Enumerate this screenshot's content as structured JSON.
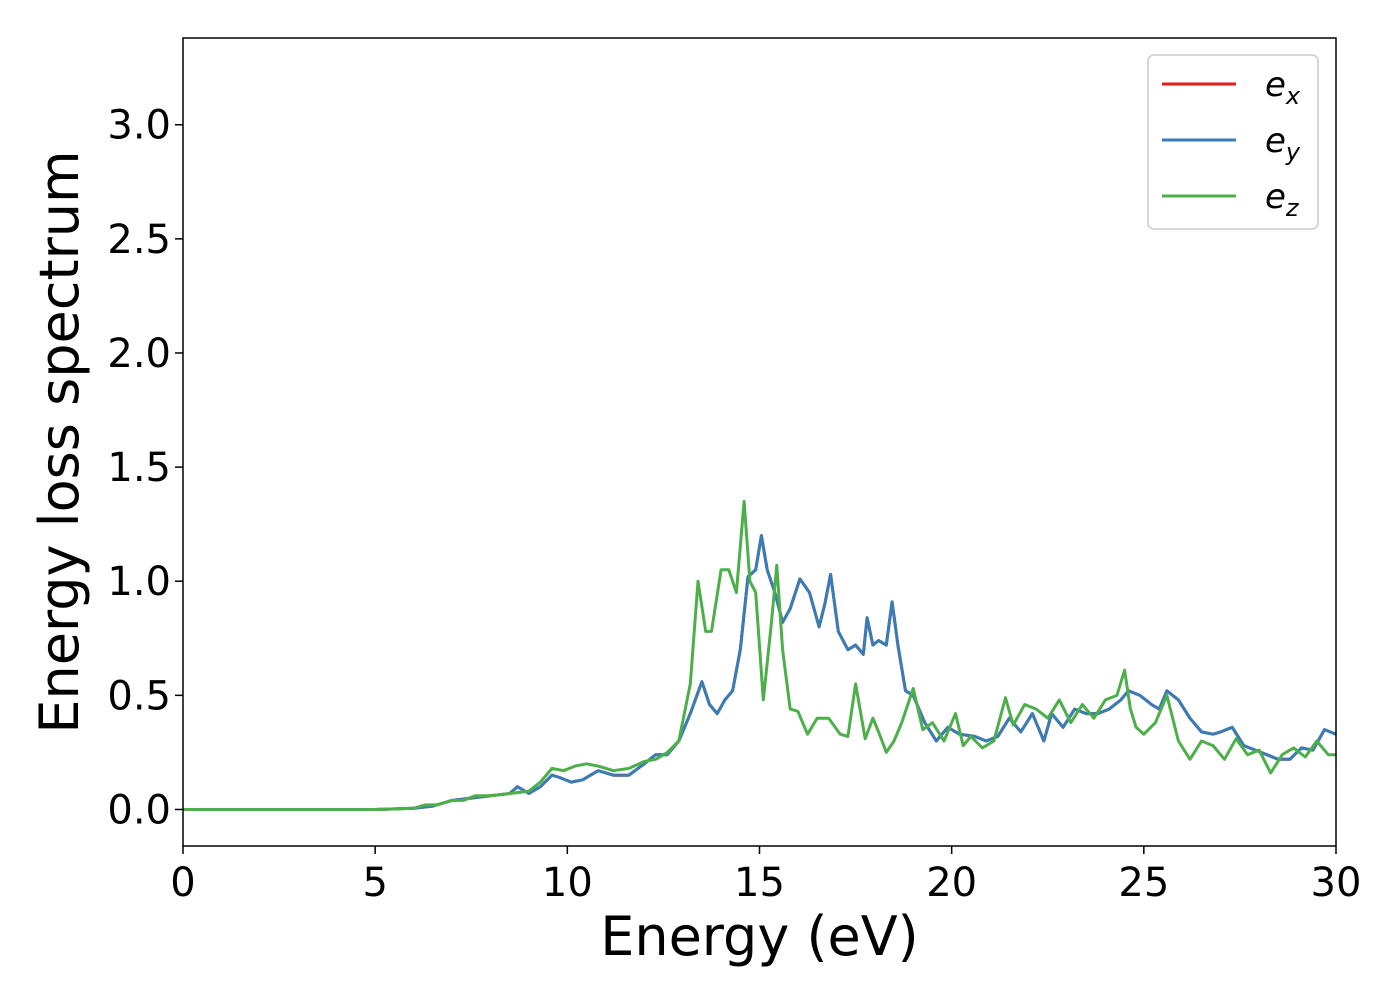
{
  "chart_data": {
    "type": "line",
    "xlabel": "Energy (eV)",
    "ylabel": "Energy loss spectrum",
    "xlim": [
      0,
      30
    ],
    "ylim": [
      -0.16,
      3.38
    ],
    "xticks": [
      0,
      5,
      10,
      15,
      20,
      25,
      30
    ],
    "xtick_labels": [
      "0",
      "5",
      "10",
      "15",
      "20",
      "25",
      "30"
    ],
    "yticks": [
      0,
      0.5,
      1.0,
      1.5,
      2.0,
      2.5,
      3.0
    ],
    "ytick_labels": [
      "0.0",
      "0.5",
      "1.0",
      "1.5",
      "2.0",
      "2.5",
      "3.0"
    ],
    "grid": false,
    "legend_position": "top-right",
    "series": [
      {
        "name": "e_x",
        "legend_base": "e",
        "legend_sub": "x",
        "color": "#e41a1c",
        "x": [
          0,
          5,
          6,
          6.5,
          7,
          7.5,
          8,
          8.5,
          8.7,
          9,
          9.3,
          9.6,
          9.8,
          10.1,
          10.4,
          10.8,
          11.2,
          11.6,
          12,
          12.3,
          12.6,
          12.9,
          13.2,
          13.5,
          13.7,
          13.9,
          14.1,
          14.3,
          14.5,
          14.7,
          14.9,
          15.05,
          15.2,
          15.4,
          15.6,
          15.8,
          16.05,
          16.3,
          16.55,
          16.7,
          16.85,
          17.05,
          17.3,
          17.5,
          17.7,
          17.8,
          17.95,
          18.1,
          18.3,
          18.45,
          18.6,
          18.8,
          19.0,
          19.3,
          19.6,
          19.9,
          20.2,
          20.6,
          20.9,
          21.2,
          21.5,
          21.8,
          22.1,
          22.4,
          22.6,
          22.9,
          23.2,
          23.5,
          23.8,
          24.1,
          24.4,
          24.6,
          24.9,
          25.2,
          25.4,
          25.6,
          25.9,
          26.2,
          26.5,
          26.8,
          27.0,
          27.3,
          27.6,
          27.9,
          28.2,
          28.5,
          28.8,
          29.1,
          29.4,
          29.7,
          30
        ],
        "values": [
          0,
          0,
          0.005,
          0.015,
          0.04,
          0.05,
          0.06,
          0.07,
          0.1,
          0.07,
          0.1,
          0.15,
          0.14,
          0.12,
          0.13,
          0.17,
          0.15,
          0.15,
          0.2,
          0.24,
          0.24,
          0.3,
          0.42,
          0.56,
          0.46,
          0.42,
          0.48,
          0.52,
          0.7,
          1.02,
          1.05,
          1.2,
          1.05,
          0.95,
          0.82,
          0.88,
          1.01,
          0.95,
          0.8,
          0.9,
          1.03,
          0.78,
          0.7,
          0.72,
          0.68,
          0.84,
          0.72,
          0.74,
          0.72,
          0.91,
          0.72,
          0.52,
          0.5,
          0.38,
          0.3,
          0.36,
          0.33,
          0.32,
          0.3,
          0.32,
          0.4,
          0.34,
          0.42,
          0.3,
          0.42,
          0.36,
          0.44,
          0.42,
          0.42,
          0.44,
          0.48,
          0.52,
          0.5,
          0.46,
          0.44,
          0.52,
          0.48,
          0.4,
          0.34,
          0.33,
          0.34,
          0.36,
          0.28,
          0.26,
          0.24,
          0.22,
          0.22,
          0.27,
          0.26,
          0.35,
          0.33
        ]
      },
      {
        "name": "e_y",
        "legend_base": "e",
        "legend_sub": "y",
        "color": "#377eb8",
        "x": [
          0,
          5,
          6,
          6.5,
          7,
          7.5,
          8,
          8.5,
          8.7,
          9,
          9.3,
          9.6,
          9.8,
          10.1,
          10.4,
          10.8,
          11.2,
          11.6,
          12,
          12.3,
          12.6,
          12.9,
          13.2,
          13.5,
          13.7,
          13.9,
          14.1,
          14.3,
          14.5,
          14.7,
          14.9,
          15.05,
          15.2,
          15.4,
          15.6,
          15.8,
          16.05,
          16.3,
          16.55,
          16.7,
          16.85,
          17.05,
          17.3,
          17.5,
          17.7,
          17.8,
          17.95,
          18.1,
          18.3,
          18.45,
          18.6,
          18.8,
          19.0,
          19.3,
          19.6,
          19.9,
          20.2,
          20.6,
          20.9,
          21.2,
          21.5,
          21.8,
          22.1,
          22.4,
          22.6,
          22.9,
          23.2,
          23.5,
          23.8,
          24.1,
          24.4,
          24.6,
          24.9,
          25.2,
          25.4,
          25.6,
          25.9,
          26.2,
          26.5,
          26.8,
          27.0,
          27.3,
          27.6,
          27.9,
          28.2,
          28.5,
          28.8,
          29.1,
          29.4,
          29.7,
          30
        ],
        "values": [
          0,
          0,
          0.005,
          0.015,
          0.04,
          0.05,
          0.06,
          0.07,
          0.1,
          0.07,
          0.1,
          0.15,
          0.14,
          0.12,
          0.13,
          0.17,
          0.15,
          0.15,
          0.2,
          0.24,
          0.24,
          0.3,
          0.42,
          0.56,
          0.46,
          0.42,
          0.48,
          0.52,
          0.7,
          1.02,
          1.05,
          1.2,
          1.05,
          0.95,
          0.82,
          0.88,
          1.01,
          0.95,
          0.8,
          0.9,
          1.03,
          0.78,
          0.7,
          0.72,
          0.68,
          0.84,
          0.72,
          0.74,
          0.72,
          0.91,
          0.72,
          0.52,
          0.5,
          0.38,
          0.3,
          0.36,
          0.33,
          0.32,
          0.3,
          0.32,
          0.4,
          0.34,
          0.42,
          0.3,
          0.42,
          0.36,
          0.44,
          0.42,
          0.42,
          0.44,
          0.48,
          0.52,
          0.5,
          0.46,
          0.44,
          0.52,
          0.48,
          0.4,
          0.34,
          0.33,
          0.34,
          0.36,
          0.28,
          0.26,
          0.24,
          0.22,
          0.22,
          0.27,
          0.26,
          0.35,
          0.33
        ]
      },
      {
        "name": "e_z",
        "legend_base": "e",
        "legend_sub": "z",
        "color": "#4daf4a",
        "x": [
          0,
          5,
          6,
          6.3,
          6.6,
          7,
          7.3,
          7.6,
          8,
          8.5,
          9,
          9.3,
          9.6,
          9.9,
          10.2,
          10.5,
          10.8,
          11.2,
          11.6,
          12,
          12.3,
          12.6,
          12.9,
          13.2,
          13.4,
          13.6,
          13.75,
          14.0,
          14.2,
          14.4,
          14.6,
          14.75,
          14.9,
          15.1,
          15.3,
          15.45,
          15.6,
          15.8,
          16.0,
          16.25,
          16.5,
          16.8,
          17.1,
          17.3,
          17.5,
          17.75,
          17.95,
          18.1,
          18.3,
          18.5,
          18.7,
          19.0,
          19.25,
          19.5,
          19.8,
          20.1,
          20.3,
          20.5,
          20.8,
          21.1,
          21.4,
          21.6,
          21.9,
          22.2,
          22.5,
          22.8,
          23.1,
          23.4,
          23.7,
          24.0,
          24.3,
          24.5,
          24.65,
          24.8,
          25.0,
          25.3,
          25.6,
          25.9,
          26.2,
          26.5,
          26.8,
          27.1,
          27.4,
          27.7,
          28.0,
          28.3,
          28.6,
          28.9,
          29.2,
          29.5,
          29.8,
          30
        ],
        "values": [
          0,
          0,
          0.005,
          0.02,
          0.02,
          0.04,
          0.04,
          0.06,
          0.06,
          0.07,
          0.08,
          0.12,
          0.18,
          0.17,
          0.19,
          0.2,
          0.19,
          0.17,
          0.18,
          0.21,
          0.22,
          0.25,
          0.3,
          0.55,
          1.0,
          0.78,
          0.78,
          1.05,
          1.05,
          0.95,
          1.35,
          1.0,
          0.95,
          0.48,
          0.8,
          1.07,
          0.7,
          0.44,
          0.43,
          0.33,
          0.4,
          0.4,
          0.33,
          0.32,
          0.55,
          0.31,
          0.4,
          0.34,
          0.25,
          0.3,
          0.38,
          0.53,
          0.35,
          0.38,
          0.3,
          0.42,
          0.28,
          0.32,
          0.27,
          0.3,
          0.49,
          0.37,
          0.46,
          0.44,
          0.4,
          0.48,
          0.38,
          0.46,
          0.4,
          0.48,
          0.5,
          0.61,
          0.44,
          0.36,
          0.33,
          0.38,
          0.5,
          0.3,
          0.22,
          0.3,
          0.28,
          0.22,
          0.31,
          0.24,
          0.26,
          0.16,
          0.24,
          0.27,
          0.23,
          0.3,
          0.24,
          0.24
        ]
      }
    ]
  }
}
